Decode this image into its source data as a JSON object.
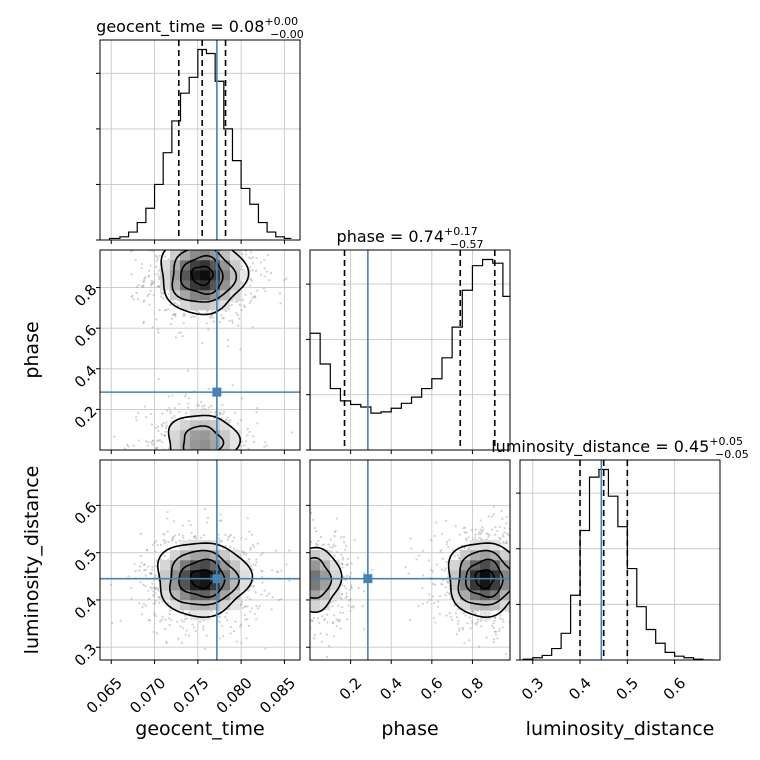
{
  "chart_data": {
    "type": "corner",
    "parameters": [
      "geocent_time",
      "phase",
      "luminosity_distance"
    ],
    "truth": {
      "geocent_time": 0.0772,
      "phase": 0.285,
      "luminosity_distance": 0.445
    },
    "titles": [
      {
        "name": "geocent_time",
        "value": "0.08",
        "plus": "+0.00",
        "minus": "−0.00"
      },
      {
        "name": "phase",
        "value": "0.74",
        "plus": "+0.17",
        "minus": "−0.57"
      },
      {
        "name": "luminosity_distance",
        "value": "0.45",
        "plus": "+0.05",
        "minus": "−0.05"
      }
    ],
    "axes": {
      "geocent_time": {
        "label": "geocent_time",
        "range": [
          0.0637,
          0.0868
        ],
        "ticks": [
          0.065,
          0.07,
          0.075,
          0.08,
          0.085
        ],
        "tick_labels": [
          "0.065",
          "0.070",
          "0.075",
          "0.080",
          "0.085"
        ]
      },
      "phase": {
        "label": "phase",
        "range": [
          0.0,
          0.985
        ],
        "ticks": [
          0.2,
          0.4,
          0.6,
          0.8
        ],
        "tick_labels": [
          "0.2",
          "0.4",
          "0.6",
          "0.8"
        ]
      },
      "luminosity_distance": {
        "label": "luminosity_distance",
        "range": [
          0.273,
          0.696
        ],
        "ticks": [
          0.3,
          0.4,
          0.5,
          0.6
        ],
        "tick_labels": [
          "0.3",
          "0.4",
          "0.5",
          "0.6"
        ]
      }
    },
    "histograms": {
      "geocent_time": {
        "bin_edges": [
          0.0648,
          0.066,
          0.067,
          0.068,
          0.069,
          0.07,
          0.071,
          0.072,
          0.073,
          0.074,
          0.075,
          0.076,
          0.077,
          0.078,
          0.079,
          0.08,
          0.081,
          0.082,
          0.083,
          0.084,
          0.085,
          0.0858
        ],
        "counts": [
          2,
          4,
          10,
          22,
          40,
          70,
          110,
          150,
          185,
          205,
          240,
          235,
          200,
          140,
          100,
          65,
          45,
          22,
          10,
          4,
          2
        ],
        "quantiles": [
          0.0728,
          0.0755,
          0.0782
        ]
      },
      "phase": {
        "bin_edges": [
          0.0,
          0.05,
          0.1,
          0.15,
          0.2,
          0.25,
          0.3,
          0.35,
          0.4,
          0.45,
          0.5,
          0.55,
          0.6,
          0.65,
          0.7,
          0.75,
          0.8,
          0.85,
          0.9,
          0.95,
          0.985
        ],
        "counts": [
          95,
          70,
          50,
          40,
          37,
          35,
          30,
          31,
          34,
          38,
          43,
          50,
          58,
          75,
          100,
          130,
          150,
          155,
          152,
          125
        ],
        "quantiles": [
          0.17,
          0.74,
          0.91
        ]
      },
      "luminosity_distance": {
        "bin_edges": [
          0.28,
          0.3,
          0.32,
          0.34,
          0.36,
          0.38,
          0.4,
          0.42,
          0.44,
          0.46,
          0.48,
          0.5,
          0.52,
          0.54,
          0.56,
          0.58,
          0.6,
          0.62,
          0.64,
          0.66,
          0.68
        ],
        "counts": [
          1,
          3,
          6,
          15,
          35,
          85,
          170,
          240,
          250,
          215,
          175,
          120,
          70,
          40,
          22,
          10,
          5,
          3,
          1,
          0
        ],
        "quantiles": [
          0.4,
          0.45,
          0.5
        ]
      }
    }
  }
}
